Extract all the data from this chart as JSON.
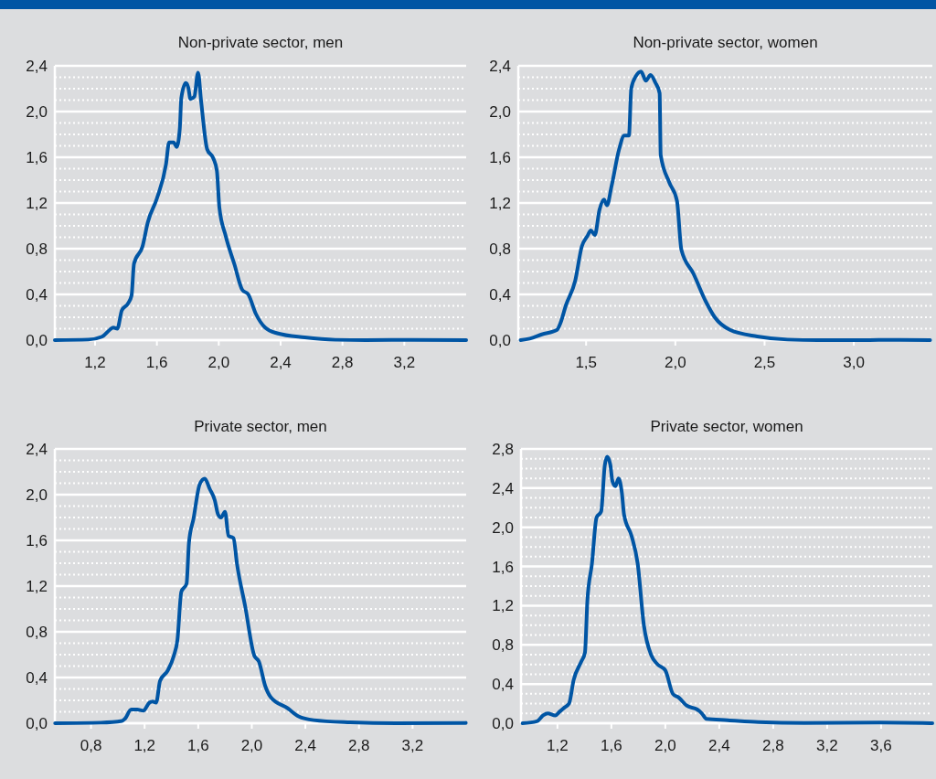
{
  "chart_data": [
    {
      "type": "line",
      "title": "Non-private sector, men",
      "grid": "y",
      "line_style": "solid",
      "marker": "none",
      "xlim": [
        0.94,
        3.6
      ],
      "ylim": [
        0,
        2.4
      ],
      "xticks": [
        {
          "value": 1.2,
          "label": "1,2"
        },
        {
          "value": 1.6,
          "label": "1,6"
        },
        {
          "value": 2.0,
          "label": "2,0"
        },
        {
          "value": 2.4,
          "label": "2,4"
        },
        {
          "value": 2.8,
          "label": "2,8"
        },
        {
          "value": 3.2,
          "label": "3,2"
        }
      ],
      "yticks": [
        {
          "value": 0,
          "label": "0,0"
        },
        {
          "value": 0.1,
          "label": null
        },
        {
          "value": 0.2,
          "label": null
        },
        {
          "value": 0.3,
          "label": null
        },
        {
          "value": 0.4,
          "label": "0,4"
        },
        {
          "value": 0.5,
          "label": null
        },
        {
          "value": 0.6,
          "label": null
        },
        {
          "value": 0.7,
          "label": null
        },
        {
          "value": 0.8,
          "label": "0,8"
        },
        {
          "value": 0.9,
          "label": null
        },
        {
          "value": 1.0,
          "label": null
        },
        {
          "value": 1.1,
          "label": null
        },
        {
          "value": 1.2,
          "label": "1,2"
        },
        {
          "value": 1.3,
          "label": null
        },
        {
          "value": 1.4,
          "label": null
        },
        {
          "value": 1.5,
          "label": null
        },
        {
          "value": 1.6,
          "label": "1,6"
        },
        {
          "value": 1.7,
          "label": null
        },
        {
          "value": 1.8,
          "label": null
        },
        {
          "value": 1.9,
          "label": null
        },
        {
          "value": 2.0,
          "label": "2,0"
        },
        {
          "value": 2.1,
          "label": null
        },
        {
          "value": 2.2,
          "label": null
        },
        {
          "value": 2.3,
          "label": null
        },
        {
          "value": 2.4,
          "label": "2,4"
        }
      ],
      "series": [
        {
          "color": "#0055a4",
          "x": [
            0.94,
            1.157,
            1.245,
            1.295,
            1.318,
            1.344,
            1.373,
            1.413,
            1.436,
            1.452,
            1.507,
            1.541,
            1.6,
            1.659,
            1.679,
            1.708,
            1.728,
            1.748,
            1.758,
            1.787,
            1.803,
            1.817,
            1.842,
            1.866,
            1.886,
            1.925,
            1.965,
            1.988,
            2.004,
            2.043,
            2.102,
            2.152,
            2.191,
            2.24,
            2.3,
            2.378,
            2.556,
            2.753,
            2.95,
            3.245,
            3.6
          ],
          "values": [
            0,
            0.005,
            0.03,
            0.09,
            0.11,
            0.1,
            0.26,
            0.32,
            0.39,
            0.67,
            0.82,
            1.03,
            1.24,
            1.54,
            1.73,
            1.73,
            1.69,
            1.85,
            2.12,
            2.25,
            2.21,
            2.11,
            2.13,
            2.34,
            2.09,
            1.67,
            1.59,
            1.48,
            1.16,
            0.92,
            0.66,
            0.44,
            0.4,
            0.23,
            0.11,
            0.06,
            0.024,
            0.003,
            0,
            0.003,
            0
          ]
        }
      ]
    },
    {
      "type": "line",
      "title": "Non-private sector, women",
      "grid": "y",
      "line_style": "solid",
      "marker": "none",
      "xlim": [
        1.12,
        3.44
      ],
      "ylim": [
        0,
        2.4
      ],
      "xticks": [
        {
          "value": 1.5,
          "label": "1,5"
        },
        {
          "value": 2.0,
          "label": "2,0"
        },
        {
          "value": 2.5,
          "label": "2,5"
        },
        {
          "value": 3.0,
          "label": "3,0"
        }
      ],
      "yticks": [
        {
          "value": 0,
          "label": "0,0"
        },
        {
          "value": 0.1,
          "label": null
        },
        {
          "value": 0.2,
          "label": null
        },
        {
          "value": 0.3,
          "label": null
        },
        {
          "value": 0.4,
          "label": "0,4"
        },
        {
          "value": 0.5,
          "label": null
        },
        {
          "value": 0.6,
          "label": null
        },
        {
          "value": 0.7,
          "label": null
        },
        {
          "value": 0.8,
          "label": "0,8"
        },
        {
          "value": 0.9,
          "label": null
        },
        {
          "value": 1.0,
          "label": null
        },
        {
          "value": 1.1,
          "label": null
        },
        {
          "value": 1.2,
          "label": "1,2"
        },
        {
          "value": 1.3,
          "label": null
        },
        {
          "value": 1.4,
          "label": null
        },
        {
          "value": 1.5,
          "label": null
        },
        {
          "value": 1.6,
          "label": "1,6"
        },
        {
          "value": 1.7,
          "label": null
        },
        {
          "value": 1.8,
          "label": null
        },
        {
          "value": 1.9,
          "label": null
        },
        {
          "value": 2.0,
          "label": "2,0"
        },
        {
          "value": 2.1,
          "label": null
        },
        {
          "value": 2.2,
          "label": null
        },
        {
          "value": 2.3,
          "label": null
        },
        {
          "value": 2.4,
          "label": "2,4"
        }
      ],
      "series": [
        {
          "color": "#0055a4",
          "x": [
            1.133,
            1.184,
            1.252,
            1.337,
            1.354,
            1.388,
            1.439,
            1.476,
            1.507,
            1.527,
            1.549,
            1.575,
            1.6,
            1.617,
            1.643,
            1.685,
            1.714,
            1.74,
            1.753,
            1.779,
            1.808,
            1.835,
            1.861,
            1.889,
            1.912,
            1.918,
            1.966,
            2.009,
            2.034,
            2.102,
            2.17,
            2.221,
            2.306,
            2.459,
            2.629,
            2.799,
            3.054,
            3.224,
            3.428
          ],
          "values": [
            0,
            0.013,
            0.05,
            0.09,
            0.14,
            0.31,
            0.52,
            0.82,
            0.91,
            0.96,
            0.92,
            1.14,
            1.23,
            1.18,
            1.35,
            1.67,
            1.79,
            1.79,
            2.2,
            2.31,
            2.35,
            2.27,
            2.32,
            2.25,
            2.16,
            1.62,
            1.38,
            1.22,
            0.79,
            0.58,
            0.34,
            0.2,
            0.09,
            0.032,
            0.005,
            0,
            0,
            0.003,
            0
          ]
        }
      ]
    },
    {
      "type": "line",
      "title": "Private sector, men",
      "grid": "y",
      "line_style": "solid",
      "marker": "none",
      "xlim": [
        0.53,
        3.6
      ],
      "ylim": [
        0,
        2.4
      ],
      "xticks": [
        {
          "value": 0.8,
          "label": "0,8"
        },
        {
          "value": 1.2,
          "label": "1,2"
        },
        {
          "value": 1.6,
          "label": "1,6"
        },
        {
          "value": 2.0,
          "label": "2,0"
        },
        {
          "value": 2.4,
          "label": "2,4"
        },
        {
          "value": 2.8,
          "label": "2,8"
        },
        {
          "value": 3.2,
          "label": "3,2"
        }
      ],
      "yticks": [
        {
          "value": 0,
          "label": "0,0"
        },
        {
          "value": 0.1,
          "label": null
        },
        {
          "value": 0.2,
          "label": null
        },
        {
          "value": 0.3,
          "label": null
        },
        {
          "value": 0.4,
          "label": "0,4"
        },
        {
          "value": 0.5,
          "label": null
        },
        {
          "value": 0.6,
          "label": null
        },
        {
          "value": 0.7,
          "label": null
        },
        {
          "value": 0.8,
          "label": "0,8"
        },
        {
          "value": 0.9,
          "label": null
        },
        {
          "value": 1.0,
          "label": null
        },
        {
          "value": 1.1,
          "label": null
        },
        {
          "value": 1.2,
          "label": "1,2"
        },
        {
          "value": 1.3,
          "label": null
        },
        {
          "value": 1.4,
          "label": null
        },
        {
          "value": 1.5,
          "label": null
        },
        {
          "value": 1.6,
          "label": "1,6"
        },
        {
          "value": 1.7,
          "label": null
        },
        {
          "value": 1.8,
          "label": null
        },
        {
          "value": 1.9,
          "label": null
        },
        {
          "value": 2.0,
          "label": "2,0"
        },
        {
          "value": 2.1,
          "label": null
        },
        {
          "value": 2.2,
          "label": null
        },
        {
          "value": 2.3,
          "label": null
        },
        {
          "value": 2.4,
          "label": "2,4"
        }
      ],
      "series": [
        {
          "color": "#0055a4",
          "x": [
            0.532,
            0.873,
            1.032,
            1.054,
            1.1,
            1.145,
            1.19,
            1.236,
            1.259,
            1.286,
            1.315,
            1.372,
            1.418,
            1.445,
            1.474,
            1.513,
            1.531,
            1.565,
            1.611,
            1.649,
            1.686,
            1.724,
            1.747,
            1.77,
            1.8,
            1.826,
            1.863,
            1.89,
            1.951,
            2.019,
            2.053,
            2.099,
            2.14,
            2.269,
            2.349,
            2.462,
            2.735,
            3.075,
            3.597
          ],
          "values": [
            0,
            0.005,
            0.02,
            0.04,
            0.12,
            0.12,
            0.11,
            0.18,
            0.19,
            0.18,
            0.37,
            0.46,
            0.59,
            0.73,
            1.15,
            1.22,
            1.58,
            1.79,
            2.09,
            2.14,
            2.05,
            1.95,
            1.83,
            1.8,
            1.85,
            1.64,
            1.62,
            1.39,
            1.02,
            0.59,
            0.54,
            0.33,
            0.23,
            0.13,
            0.06,
            0.027,
            0.008,
            0,
            0.003
          ]
        }
      ]
    },
    {
      "type": "line",
      "title": "Private sector, women",
      "grid": "y",
      "line_style": "solid",
      "marker": "none",
      "xlim": [
        0.93,
        3.98
      ],
      "ylim": [
        0,
        2.8
      ],
      "xticks": [
        {
          "value": 1.2,
          "label": "1,2"
        },
        {
          "value": 1.6,
          "label": "1,6"
        },
        {
          "value": 2.0,
          "label": "2,0"
        },
        {
          "value": 2.4,
          "label": "2,4"
        },
        {
          "value": 2.8,
          "label": "2,8"
        },
        {
          "value": 3.2,
          "label": "3,2"
        },
        {
          "value": 3.6,
          "label": "3,6"
        }
      ],
      "yticks": [
        {
          "value": 0,
          "label": "0,0"
        },
        {
          "value": 0.1,
          "label": null
        },
        {
          "value": 0.2,
          "label": null
        },
        {
          "value": 0.3,
          "label": null
        },
        {
          "value": 0.4,
          "label": "0,4"
        },
        {
          "value": 0.5,
          "label": null
        },
        {
          "value": 0.6,
          "label": null
        },
        {
          "value": 0.7,
          "label": null
        },
        {
          "value": 0.8,
          "label": "0,8"
        },
        {
          "value": 0.9,
          "label": null
        },
        {
          "value": 1.0,
          "label": null
        },
        {
          "value": 1.1,
          "label": null
        },
        {
          "value": 1.2,
          "label": "1,2"
        },
        {
          "value": 1.3,
          "label": null
        },
        {
          "value": 1.4,
          "label": null
        },
        {
          "value": 1.5,
          "label": null
        },
        {
          "value": 1.6,
          "label": "1,6"
        },
        {
          "value": 1.7,
          "label": null
        },
        {
          "value": 1.8,
          "label": null
        },
        {
          "value": 1.9,
          "label": null
        },
        {
          "value": 2.0,
          "label": "2,0"
        },
        {
          "value": 2.1,
          "label": null
        },
        {
          "value": 2.2,
          "label": null
        },
        {
          "value": 2.3,
          "label": null
        },
        {
          "value": 2.4,
          "label": "2,4"
        },
        {
          "value": 2.5,
          "label": null
        },
        {
          "value": 2.6,
          "label": null
        },
        {
          "value": 2.7,
          "label": null
        },
        {
          "value": 2.8,
          "label": "2,8"
        }
      ],
      "series": [
        {
          "color": "#0055a4",
          "x": [
            0.942,
            1.048,
            1.094,
            1.128,
            1.184,
            1.218,
            1.252,
            1.286,
            1.32,
            1.377,
            1.404,
            1.422,
            1.456,
            1.49,
            1.524,
            1.551,
            1.569,
            1.592,
            1.608,
            1.63,
            1.653,
            1.678,
            1.694,
            1.75,
            1.795,
            1.841,
            1.897,
            1.943,
            2.0,
            2.056,
            2.101,
            2.158,
            2.237,
            2.271,
            2.305,
            2.463,
            2.69,
            3.029,
            3.595,
            3.98
          ],
          "values": [
            0,
            0.02,
            0.08,
            0.1,
            0.08,
            0.12,
            0.16,
            0.2,
            0.44,
            0.63,
            0.72,
            1.25,
            1.63,
            2.1,
            2.16,
            2.63,
            2.72,
            2.64,
            2.47,
            2.42,
            2.5,
            2.35,
            2.13,
            1.91,
            1.63,
            1.0,
            0.69,
            0.6,
            0.54,
            0.3,
            0.26,
            0.18,
            0.14,
            0.1,
            0.044,
            0.031,
            0.012,
            0.003,
            0.006,
            0
          ]
        }
      ]
    }
  ]
}
